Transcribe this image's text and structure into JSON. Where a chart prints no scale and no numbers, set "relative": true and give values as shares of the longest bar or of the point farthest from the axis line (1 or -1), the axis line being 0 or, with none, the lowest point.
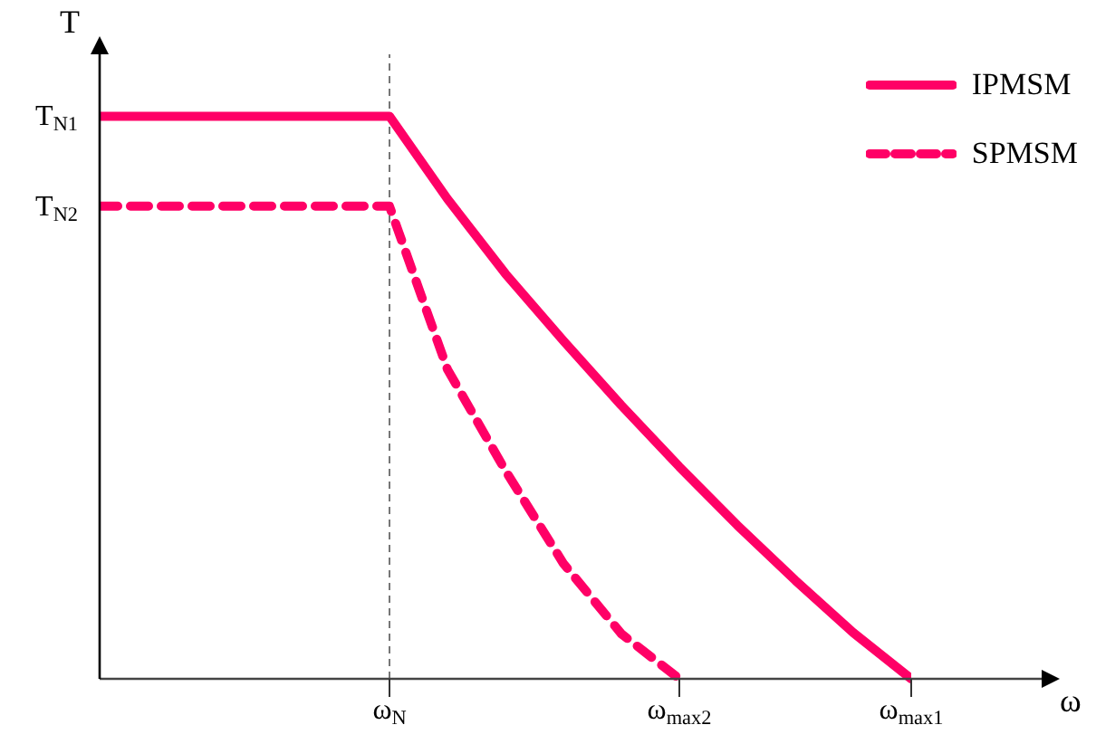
{
  "chart_data": {
    "type": "line",
    "xlabel": "ω",
    "ylabel": "T",
    "relative": true,
    "categories": [
      null,
      null,
      null,
      null,
      null,
      "ω$_{N}$",
      null,
      null,
      null,
      null,
      "ω$_{max2}$",
      null,
      null,
      null,
      "ω$_{max1}$"
    ],
    "annotations": [
      "T$_{N1}$",
      "T$_{N2}$"
    ],
    "series": [
      {
        "name": "IPMSM",
        "color": "#ff0066",
        "line_style": "solid",
        "values": [
          1,
          1,
          1,
          1,
          1,
          1,
          0.853,
          0.72,
          0.601,
          0.486,
          0.377,
          0.273,
          0.175,
          0.082,
          0
        ]
      },
      {
        "name": "SPMSM",
        "color": "#ff0066",
        "line_style": "dashed",
        "values": [
          0.84,
          0.84,
          0.84,
          0.84,
          0.84,
          0.84,
          0.55,
          0.37,
          0.205,
          0.08,
          0,
          null,
          null,
          null,
          null
        ]
      }
    ],
    "ref_lines": [
      {
        "axis": "x",
        "value": "ω$_{N}$",
        "color": "#555555",
        "line_style": "dashed"
      }
    ],
    "grid": false,
    "legend": "top right",
    "marker": "none"
  }
}
